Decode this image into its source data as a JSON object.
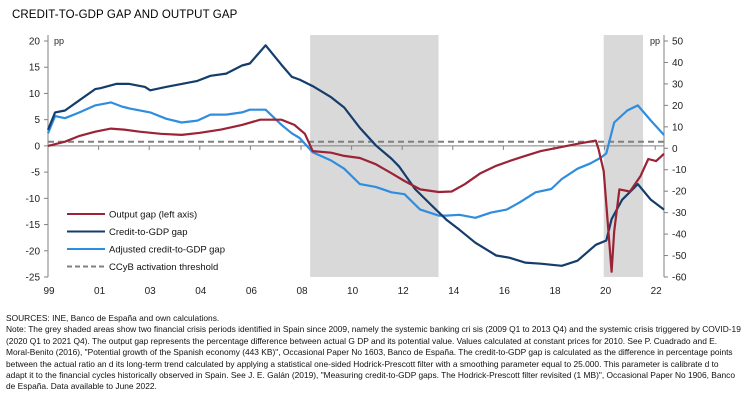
{
  "title": "CREDIT-TO-GDP GAP AND OUTPUT GAP",
  "chart_data": {
    "type": "line",
    "title": "CREDIT-TO-GDP GAP AND OUTPUT GAP",
    "left_axis": {
      "unit": "pp",
      "ylim": [
        -25,
        20
      ],
      "ticks": [
        20,
        15,
        10,
        5,
        0,
        -5,
        -10,
        -15,
        -20,
        -25
      ],
      "tick_labels": [
        "20",
        "15",
        "10",
        "5",
        "0",
        "-5",
        "-10",
        "-15",
        "-20",
        "-25"
      ]
    },
    "right_axis": {
      "unit": "pp",
      "ylim": [
        -60,
        50
      ],
      "ticks": [
        50,
        40,
        30,
        20,
        10,
        0,
        -10,
        -20,
        -30,
        -40,
        -50,
        -60
      ],
      "tick_labels": [
        "50",
        "40",
        "30",
        "20",
        "10",
        "0",
        "-10",
        "-20",
        "-30",
        "-40",
        "-50",
        "-60"
      ]
    },
    "x_axis": {
      "xlim": [
        1999.0,
        2022.5
      ],
      "tick_labels": [
        "99",
        "01",
        "03",
        "04",
        "06",
        "08",
        "10",
        "12",
        "14",
        "16",
        "18",
        "20",
        "22"
      ]
    },
    "shaded_periods": [
      {
        "label": "Systemic banking crisis (2009 Q1 to 2013 Q4)",
        "start": 2009.0,
        "end": 2013.9
      },
      {
        "label": "Systemic crisis triggered by COVID-19 (2020 Q1 to 2021 Q4)",
        "start": 2020.2,
        "end": 2021.7
      }
    ],
    "threshold": {
      "name": "CCyB activation threshold",
      "value": 0.8,
      "axis": "left",
      "color": "#808080"
    },
    "series": [
      {
        "name": "Output gap (left axis)",
        "axis": "left",
        "color": "#9b2335",
        "points": [
          [
            1999.0,
            0
          ],
          [
            1999.65,
            0.8
          ],
          [
            2000.2,
            1.9
          ],
          [
            2000.8,
            2.7
          ],
          [
            2001.4,
            3.3
          ],
          [
            2001.9,
            3.1
          ],
          [
            2002.5,
            2.7
          ],
          [
            2003.3,
            2.3
          ],
          [
            2004.1,
            2.1
          ],
          [
            2004.8,
            2.5
          ],
          [
            2005.6,
            3.1
          ],
          [
            2006.4,
            4.0
          ],
          [
            2007.1,
            5.0
          ],
          [
            2007.9,
            5.0
          ],
          [
            2008.4,
            4.0
          ],
          [
            2008.8,
            2.3
          ],
          [
            2009.1,
            -1.0
          ],
          [
            2009.8,
            -1.3
          ],
          [
            2010.3,
            -1.9
          ],
          [
            2010.9,
            -2.3
          ],
          [
            2011.5,
            -3.5
          ],
          [
            2012.1,
            -5.2
          ],
          [
            2012.6,
            -6.7
          ],
          [
            2013.2,
            -8.3
          ],
          [
            2013.9,
            -8.8
          ],
          [
            2014.4,
            -8.7
          ],
          [
            2014.9,
            -7.3
          ],
          [
            2015.5,
            -5.2
          ],
          [
            2016.1,
            -3.8
          ],
          [
            2016.6,
            -2.9
          ],
          [
            2017.2,
            -1.9
          ],
          [
            2017.8,
            -1.0
          ],
          [
            2018.6,
            -0.2
          ],
          [
            2019.2,
            0.4
          ],
          [
            2019.9,
            1.0
          ],
          [
            2020.0,
            -0.6
          ],
          [
            2020.2,
            -4.8
          ],
          [
            2020.5,
            -24.0
          ],
          [
            2020.6,
            -16.3
          ],
          [
            2020.8,
            -8.3
          ],
          [
            2021.2,
            -8.7
          ],
          [
            2021.6,
            -5.8
          ],
          [
            2021.9,
            -2.5
          ],
          [
            2022.2,
            -2.9
          ],
          [
            2022.5,
            -1.5
          ]
        ]
      },
      {
        "name": "Credit-to-GDP gap",
        "axis": "right",
        "color": "#143d6b",
        "points": [
          [
            1999.0,
            8.6
          ],
          [
            1999.27,
            16.7
          ],
          [
            1999.65,
            17.6
          ],
          [
            2000.2,
            22.4
          ],
          [
            2000.8,
            27.6
          ],
          [
            2001.0,
            28.0
          ],
          [
            2001.6,
            30.0
          ],
          [
            2002.1,
            30.0
          ],
          [
            2002.7,
            28.6
          ],
          [
            2002.9,
            27.0
          ],
          [
            2003.5,
            28.6
          ],
          [
            2004.1,
            30.0
          ],
          [
            2004.7,
            31.4
          ],
          [
            2005.2,
            33.8
          ],
          [
            2005.8,
            34.8
          ],
          [
            2006.4,
            38.6
          ],
          [
            2006.7,
            39.5
          ],
          [
            2007.3,
            48.0
          ],
          [
            2007.9,
            39.0
          ],
          [
            2008.3,
            33.3
          ],
          [
            2008.6,
            32.0
          ],
          [
            2009.1,
            29.0
          ],
          [
            2009.8,
            23.8
          ],
          [
            2010.3,
            19.0
          ],
          [
            2010.9,
            9.5
          ],
          [
            2011.5,
            1.4
          ],
          [
            2012.1,
            -4.8
          ],
          [
            2012.4,
            -8.6
          ],
          [
            2013.0,
            -19.0
          ],
          [
            2013.6,
            -26.2
          ],
          [
            2014.2,
            -33.3
          ],
          [
            2014.7,
            -38.0
          ],
          [
            2015.3,
            -44.0
          ],
          [
            2016.1,
            -50.0
          ],
          [
            2016.6,
            -51.0
          ],
          [
            2017.2,
            -53.3
          ],
          [
            2017.8,
            -53.8
          ],
          [
            2018.6,
            -54.8
          ],
          [
            2019.2,
            -52.4
          ],
          [
            2019.9,
            -45.0
          ],
          [
            2020.3,
            -43.0
          ],
          [
            2020.5,
            -33.0
          ],
          [
            2020.9,
            -24.0
          ],
          [
            2021.5,
            -16.7
          ],
          [
            2022.0,
            -24.0
          ],
          [
            2022.5,
            -28.6
          ]
        ]
      },
      {
        "name": "Adjusted credit-to-GDP gap",
        "axis": "right",
        "color": "#2f8de0",
        "points": [
          [
            1999.0,
            7.0
          ],
          [
            1999.27,
            15.0
          ],
          [
            1999.65,
            14.0
          ],
          [
            2000.2,
            16.7
          ],
          [
            2000.8,
            20.0
          ],
          [
            2001.4,
            21.4
          ],
          [
            2001.8,
            19.5
          ],
          [
            2002.1,
            18.6
          ],
          [
            2002.9,
            16.7
          ],
          [
            2003.5,
            13.8
          ],
          [
            2004.1,
            12.0
          ],
          [
            2004.7,
            12.9
          ],
          [
            2005.2,
            15.7
          ],
          [
            2005.8,
            15.7
          ],
          [
            2006.4,
            16.7
          ],
          [
            2006.7,
            18.0
          ],
          [
            2007.3,
            18.0
          ],
          [
            2007.9,
            11.0
          ],
          [
            2008.3,
            7.0
          ],
          [
            2008.6,
            4.8
          ],
          [
            2009.1,
            -1.9
          ],
          [
            2009.8,
            -5.7
          ],
          [
            2010.3,
            -9.5
          ],
          [
            2010.9,
            -16.7
          ],
          [
            2011.5,
            -18.0
          ],
          [
            2012.1,
            -20.5
          ],
          [
            2012.6,
            -21.4
          ],
          [
            2013.2,
            -28.6
          ],
          [
            2013.9,
            -31.4
          ],
          [
            2014.2,
            -31.4
          ],
          [
            2014.7,
            -31.0
          ],
          [
            2015.3,
            -32.4
          ],
          [
            2015.9,
            -30.0
          ],
          [
            2016.5,
            -28.6
          ],
          [
            2017.0,
            -25.2
          ],
          [
            2017.6,
            -20.5
          ],
          [
            2018.2,
            -19.0
          ],
          [
            2018.6,
            -14.3
          ],
          [
            2019.2,
            -9.5
          ],
          [
            2019.7,
            -7.0
          ],
          [
            2020.1,
            -4.3
          ],
          [
            2020.3,
            -2.4
          ],
          [
            2020.6,
            12.0
          ],
          [
            2021.1,
            17.6
          ],
          [
            2021.5,
            20.0
          ],
          [
            2022.0,
            12.9
          ],
          [
            2022.5,
            6.2
          ]
        ]
      }
    ],
    "legend": {
      "placement": "bottom-left",
      "entries": [
        {
          "label": "Output gap (left axis)",
          "color": "#9b2335",
          "style": "solid"
        },
        {
          "label": "Credit-to-GDP gap",
          "color": "#143d6b",
          "style": "solid"
        },
        {
          "label": "Adjusted credit-to-GDP gap",
          "color": "#2f8de0",
          "style": "solid"
        },
        {
          "label": "CCyB activation threshold",
          "color": "#808080",
          "style": "dashed"
        }
      ]
    },
    "colors": {
      "shading": "#d9d9d9",
      "axis": "#808080"
    }
  },
  "notes": {
    "sources": "SOURCES: INE, Banco de España and own calculations.",
    "note": "Note: The grey shaded areas show two financial crisis periods identified in Spain since 2009, namely the systemic banking cri sis (2009 Q1 to 2013 Q4) and the systemic crisis triggered by COVID-19 (2020 Q1 to 2021 Q4). The output gap represents the percentage difference between actual G DP and its potential value. Values calculated at constant prices for 2010. See P. Cuadrado and E. Moral-Benito (2016), \"Potential growth of the Spanish economy  (443 KB)\", Occasional Paper No 1603, Banco de España. The credit-to-GDP gap is calculated as the difference in percentage points between the actual ratio an d its long-term trend calculated by applying a statistical one-sided Hodrick-Prescott filter with a smoothing parameter equal to 25.000. This parameter is calibrate d to adapt it to the financial cycles historically observed in Spain. See J. E. Galán (2019), \"Measuring credit-to-GDP gaps. The Hodrick-Prescott filter revisited  (1 MB)\", Occasional Paper No 1906, Banco de España. Data available to June 2022."
  }
}
